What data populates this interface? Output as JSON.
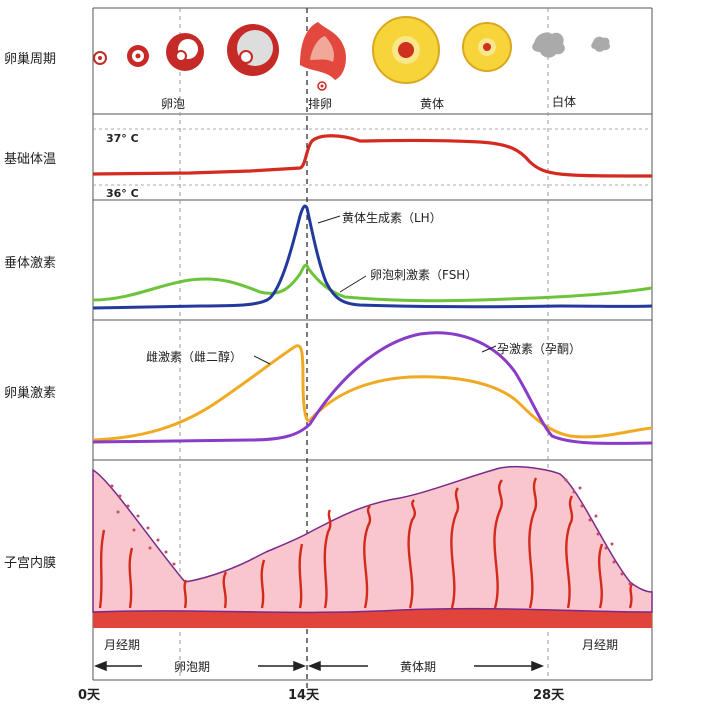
{
  "rows": {
    "ovary_cycle": "卵巢周期",
    "body_temp": "基础体温",
    "pituitary": "垂体激素",
    "ovarian_hormone": "卵巢激素",
    "endometrium": "子宫内膜"
  },
  "ovary": {
    "follicle": "卵泡",
    "ovulation": "排卵",
    "corpus_luteum": "黄体",
    "corpus_albicans": "白体"
  },
  "temp": {
    "high": "37° C",
    "low": "36° C"
  },
  "pituitary_labels": {
    "lh": "黄体生成素（LH）",
    "fsh": "卵泡刺激素（FSH）"
  },
  "ovarian_labels": {
    "estrogen": "雌激素（雌二醇）",
    "progesterone": "孕激素（孕酮）"
  },
  "menses": {
    "left": "月经期",
    "right": "月经期"
  },
  "phases": {
    "follicular": "卵泡期",
    "luteal": "黄体期"
  },
  "days": {
    "d0": "0天",
    "d14": "14天",
    "d28": "28天"
  },
  "colors": {
    "temperature": "#d42a20",
    "lh": "#233a9c",
    "fsh": "#6cc43c",
    "estrogen": "#f0aa22",
    "progesterone": "#8a3cc8",
    "endometrium_fill": "#f8c6cc",
    "gland": "#d42a1c"
  }
}
